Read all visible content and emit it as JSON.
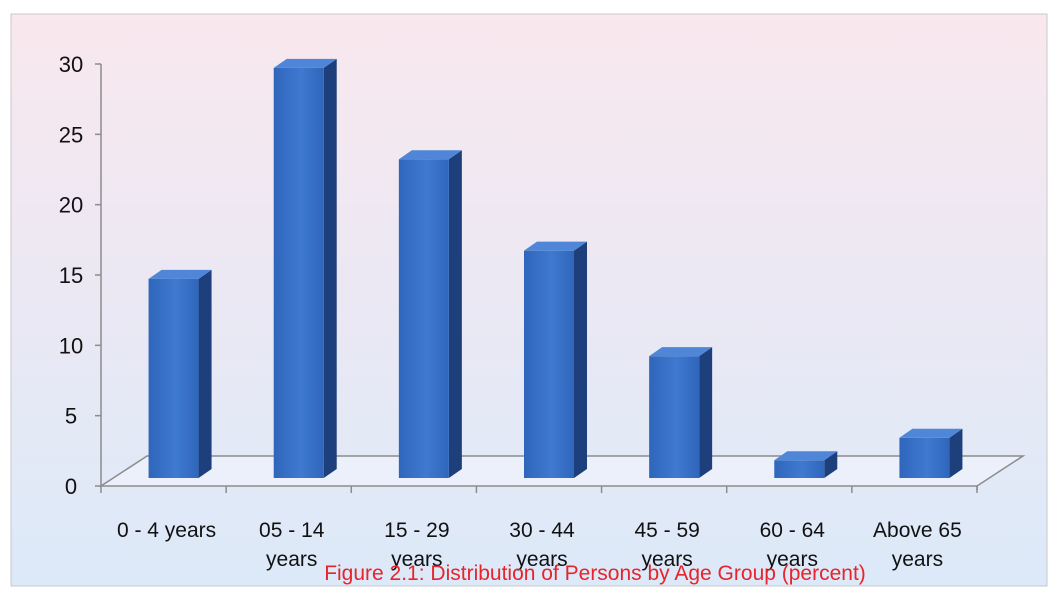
{
  "chart_data": {
    "type": "bar",
    "title": "",
    "xlabel": "",
    "ylabel": "",
    "categories": [
      [
        "0 - 4 years"
      ],
      [
        "05 - 14",
        "years"
      ],
      [
        "15 - 29",
        "years"
      ],
      [
        "30 - 44",
        "years"
      ],
      [
        "45 - 59",
        "years"
      ],
      [
        "60 - 64",
        "years"
      ],
      [
        "Above 65",
        "years"
      ]
    ],
    "values": [
      14.8,
      29.8,
      23.3,
      16.8,
      9.3,
      1.9,
      3.5
    ],
    "ylim": [
      0,
      30
    ],
    "yticks": [
      "0",
      "5",
      "10",
      "15",
      "20",
      "25",
      "30"
    ],
    "grid": false,
    "legend": "none",
    "caption": "Figure 2.1: Distribution of Persons by Age Group (percent)",
    "colors": {
      "bar_front": "#2f66bc",
      "bar_front_light": "#3f7ad0",
      "bar_side": "#1d3f7c",
      "bar_top": "#4f86d8",
      "background_top": "#f9e8ee",
      "background_bottom": "#dce9f9",
      "caption": "#e8242b",
      "axis": "#8c8c8c"
    }
  }
}
